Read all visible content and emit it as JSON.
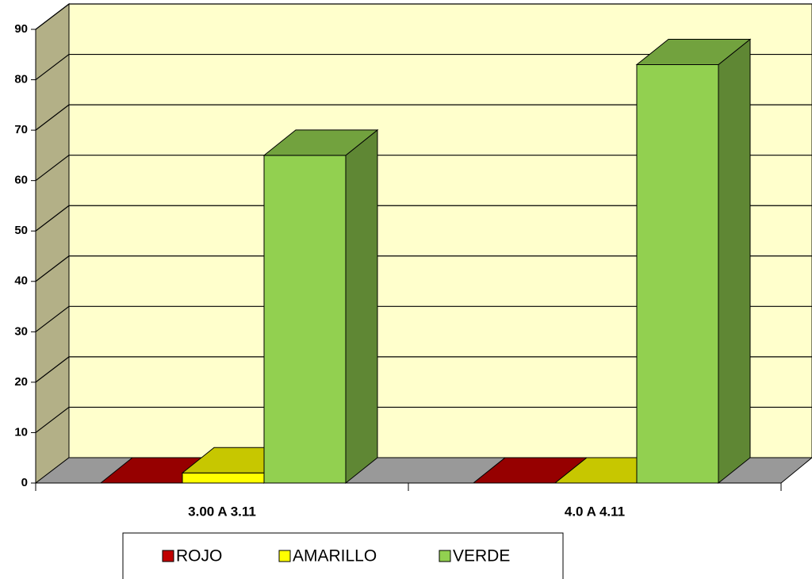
{
  "chart_data": {
    "type": "bar3d",
    "categories": [
      "3.00 A 3.11",
      "4.0 A 4.11"
    ],
    "series": [
      {
        "name": "ROJO",
        "color": "#c00000",
        "values": [
          0,
          0
        ]
      },
      {
        "name": "AMARILLO",
        "color": "#ffff00",
        "values": [
          2,
          0
        ]
      },
      {
        "name": "VERDE",
        "color": "#92d050",
        "values": [
          65,
          83
        ]
      }
    ],
    "ylim": [
      0,
      90
    ],
    "yticks": [
      0,
      10,
      20,
      30,
      40,
      50,
      60,
      70,
      80,
      90
    ],
    "grid": true,
    "legend": "bottom"
  }
}
